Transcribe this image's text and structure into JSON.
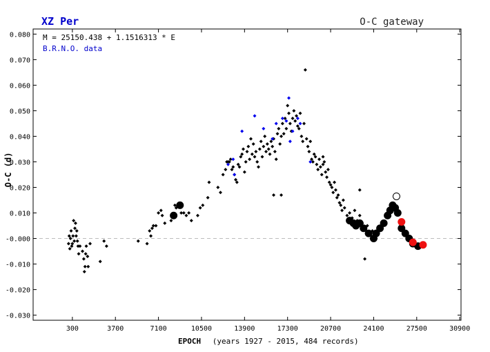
{
  "header": {
    "star_name": "XZ Per",
    "gateway_label": "O-C gateway"
  },
  "colors": {
    "title_blue": "#0000cc",
    "zero_line": "#bbbbbb",
    "visual_point": "#000000",
    "brno_point": "#0000ee",
    "ccd_point": "#000000",
    "recent_point": "#ee1111",
    "open_point_stroke": "#000000"
  },
  "chart_data": {
    "type": "scatter",
    "ephemeris": "M = 25150.438 + 1.1516313 * E",
    "data_source_label": "B.R.N.O. data",
    "xlabel": "EPOCH",
    "xlabel_note": "(years 1927 - 2015, 484 records)",
    "ylabel": "O-C (d)",
    "xlim": [
      -2800,
      31000
    ],
    "ylim": [
      -0.032,
      0.082
    ],
    "x_ticks": [
      "300",
      "3700",
      "7100",
      "10500",
      "13900",
      "17300",
      "20700",
      "24100",
      "27500",
      "30900"
    ],
    "x_tick_values": [
      300,
      3700,
      7100,
      10500,
      13900,
      17300,
      20700,
      24100,
      27500,
      30900
    ],
    "y_ticks": [
      "0.080",
      "0.070",
      "0.060",
      "0.050",
      "0.040",
      "0.030",
      "0.020",
      "0.010",
      "-0.000",
      "-0.010",
      "-0.020",
      "-0.030"
    ],
    "y_tick_values": [
      0.08,
      0.07,
      0.06,
      0.05,
      0.04,
      0.03,
      0.02,
      0.01,
      0.0,
      -0.01,
      -0.02,
      -0.03
    ],
    "zero_line": true,
    "series": [
      {
        "kind": "visual",
        "points": [
          [
            0,
            -0.002
          ],
          [
            50,
            0.001
          ],
          [
            100,
            -0.004
          ],
          [
            150,
            0.0
          ],
          [
            200,
            0.003
          ],
          [
            250,
            -0.003
          ],
          [
            300,
            -0.002
          ],
          [
            350,
            0.001
          ],
          [
            400,
            0.007
          ],
          [
            450,
            -0.001
          ],
          [
            500,
            0.004
          ],
          [
            550,
            0.006
          ],
          [
            600,
            0.001
          ],
          [
            650,
            0.003
          ],
          [
            700,
            -0.001
          ],
          [
            750,
            -0.003
          ],
          [
            800,
            -0.006
          ],
          [
            900,
            -0.003
          ],
          [
            1100,
            -0.005
          ],
          [
            1200,
            -0.008
          ],
          [
            1250,
            -0.013
          ],
          [
            1300,
            -0.011
          ],
          [
            1350,
            -0.006
          ],
          [
            1400,
            -0.003
          ],
          [
            1500,
            -0.007
          ],
          [
            1550,
            -0.011
          ],
          [
            1700,
            -0.002
          ],
          [
            2500,
            -0.009
          ],
          [
            2800,
            -0.001
          ],
          [
            3000,
            -0.003
          ],
          [
            5500,
            -0.001
          ],
          [
            6200,
            -0.002
          ],
          [
            6400,
            0.003
          ],
          [
            6500,
            0.001
          ],
          [
            6600,
            0.004
          ],
          [
            6700,
            0.005
          ],
          [
            6900,
            0.005
          ],
          [
            7100,
            0.01
          ],
          [
            7300,
            0.011
          ],
          [
            7400,
            0.009
          ],
          [
            7600,
            0.006
          ],
          [
            8100,
            0.007
          ],
          [
            8200,
            0.009
          ],
          [
            8400,
            0.013
          ],
          [
            8500,
            0.012
          ],
          [
            8900,
            0.01
          ],
          [
            9100,
            0.01
          ],
          [
            9300,
            0.009
          ],
          [
            9500,
            0.01
          ],
          [
            9700,
            0.007
          ],
          [
            10200,
            0.009
          ],
          [
            10400,
            0.012
          ],
          [
            10600,
            0.013
          ],
          [
            11000,
            0.016
          ],
          [
            11100,
            0.022
          ],
          [
            11800,
            0.02
          ],
          [
            12000,
            0.018
          ],
          [
            12200,
            0.025
          ],
          [
            12400,
            0.027
          ],
          [
            12500,
            0.03
          ],
          [
            12600,
            0.03
          ],
          [
            12700,
            0.03
          ],
          [
            12800,
            0.031
          ],
          [
            12900,
            0.027
          ],
          [
            13000,
            0.028
          ],
          [
            13100,
            0.025
          ],
          [
            13200,
            0.023
          ],
          [
            13300,
            0.022
          ],
          [
            13400,
            0.029
          ],
          [
            13500,
            0.028
          ],
          [
            13600,
            0.032
          ],
          [
            13700,
            0.033
          ],
          [
            13800,
            0.035
          ],
          [
            13900,
            0.026
          ],
          [
            14000,
            0.03
          ],
          [
            14100,
            0.034
          ],
          [
            14200,
            0.036
          ],
          [
            14300,
            0.031
          ],
          [
            14400,
            0.039
          ],
          [
            14500,
            0.033
          ],
          [
            14600,
            0.037
          ],
          [
            14700,
            0.032
          ],
          [
            14800,
            0.034
          ],
          [
            14900,
            0.03
          ],
          [
            15000,
            0.028
          ],
          [
            15100,
            0.035
          ],
          [
            15200,
            0.038
          ],
          [
            15300,
            0.032
          ],
          [
            15400,
            0.036
          ],
          [
            15500,
            0.04
          ],
          [
            15600,
            0.034
          ],
          [
            15700,
            0.037
          ],
          [
            15800,
            0.035
          ],
          [
            15900,
            0.033
          ],
          [
            16000,
            0.038
          ],
          [
            16100,
            0.036
          ],
          [
            16200,
            0.039
          ],
          [
            16300,
            0.034
          ],
          [
            16400,
            0.031
          ],
          [
            16500,
            0.041
          ],
          [
            16600,
            0.043
          ],
          [
            16700,
            0.037
          ],
          [
            16800,
            0.04
          ],
          [
            16900,
            0.045
          ],
          [
            17000,
            0.041
          ],
          [
            17100,
            0.047
          ],
          [
            17200,
            0.043
          ],
          [
            17300,
            0.052
          ],
          [
            17400,
            0.049
          ],
          [
            17500,
            0.045
          ],
          [
            17600,
            0.042
          ],
          [
            17700,
            0.047
          ],
          [
            17800,
            0.05
          ],
          [
            17900,
            0.046
          ],
          [
            18000,
            0.048
          ],
          [
            18100,
            0.044
          ],
          [
            18200,
            0.043
          ],
          [
            18300,
            0.049
          ],
          [
            18400,
            0.04
          ],
          [
            18500,
            0.038
          ],
          [
            18600,
            0.045
          ],
          [
            18700,
            0.066
          ],
          [
            18800,
            0.039
          ],
          [
            18900,
            0.036
          ],
          [
            19000,
            0.034
          ],
          [
            19100,
            0.038
          ],
          [
            19200,
            0.031
          ],
          [
            19300,
            0.03
          ],
          [
            19400,
            0.033
          ],
          [
            19500,
            0.032
          ],
          [
            19600,
            0.029
          ],
          [
            19700,
            0.027
          ],
          [
            19800,
            0.031
          ],
          [
            19900,
            0.028
          ],
          [
            20000,
            0.025
          ],
          [
            20100,
            0.029
          ],
          [
            20200,
            0.03
          ],
          [
            20300,
            0.026
          ],
          [
            20400,
            0.024
          ],
          [
            20500,
            0.027
          ],
          [
            20600,
            0.022
          ],
          [
            20700,
            0.021
          ],
          [
            20800,
            0.02
          ],
          [
            20900,
            0.018
          ],
          [
            21000,
            0.022
          ],
          [
            21100,
            0.019
          ],
          [
            21200,
            0.016
          ],
          [
            21300,
            0.017
          ],
          [
            21400,
            0.014
          ],
          [
            21500,
            0.013
          ],
          [
            21600,
            0.011
          ],
          [
            21700,
            0.015
          ],
          [
            21800,
            0.012
          ],
          [
            22000,
            0.009
          ],
          [
            22200,
            0.01
          ],
          [
            22400,
            0.008
          ],
          [
            22600,
            0.011
          ],
          [
            22800,
            0.007
          ],
          [
            23000,
            0.009
          ],
          [
            23200,
            0.006
          ],
          [
            23400,
            0.004
          ],
          [
            23600,
            0.005
          ],
          [
            23800,
            0.002
          ],
          [
            24000,
            0.003
          ],
          [
            16200,
            0.017
          ],
          [
            16800,
            0.017
          ],
          [
            23400,
            -0.008
          ],
          [
            23000,
            0.019
          ],
          [
            20100,
            0.032
          ]
        ]
      },
      {
        "kind": "brno",
        "points": [
          [
            12600,
            0.029
          ],
          [
            13000,
            0.031
          ],
          [
            13700,
            0.042
          ],
          [
            14700,
            0.048
          ],
          [
            15400,
            0.043
          ],
          [
            16100,
            0.039
          ],
          [
            16400,
            0.045
          ],
          [
            16900,
            0.047
          ],
          [
            17200,
            0.046
          ],
          [
            17400,
            0.055
          ],
          [
            17500,
            0.038
          ],
          [
            17700,
            0.042
          ],
          [
            18100,
            0.047
          ],
          [
            18300,
            0.045
          ],
          [
            19100,
            0.03
          ],
          [
            13100,
            0.025
          ]
        ]
      },
      {
        "kind": "ccd",
        "points": [
          [
            8800,
            0.013
          ],
          [
            8300,
            0.009
          ],
          [
            22200,
            0.007
          ],
          [
            22500,
            0.006
          ],
          [
            22700,
            0.005
          ],
          [
            23000,
            0.006
          ],
          [
            23300,
            0.004
          ],
          [
            23700,
            0.002
          ],
          [
            24100,
            0.0
          ],
          [
            24300,
            0.002
          ],
          [
            24600,
            0.004
          ],
          [
            24900,
            0.006
          ],
          [
            25200,
            0.009
          ],
          [
            25400,
            0.011
          ],
          [
            25600,
            0.013
          ],
          [
            25800,
            0.012
          ],
          [
            26000,
            0.01
          ],
          [
            26300,
            0.004
          ],
          [
            26600,
            0.002
          ],
          [
            26900,
            0.0
          ],
          [
            27200,
            -0.002
          ],
          [
            27600,
            -0.003
          ]
        ]
      },
      {
        "kind": "recent",
        "points": [
          [
            26300,
            0.0065
          ],
          [
            27200,
            -0.0015
          ],
          [
            28000,
            -0.0025
          ]
        ]
      },
      {
        "kind": "open",
        "points": [
          [
            25900,
            0.0165
          ]
        ]
      }
    ]
  }
}
